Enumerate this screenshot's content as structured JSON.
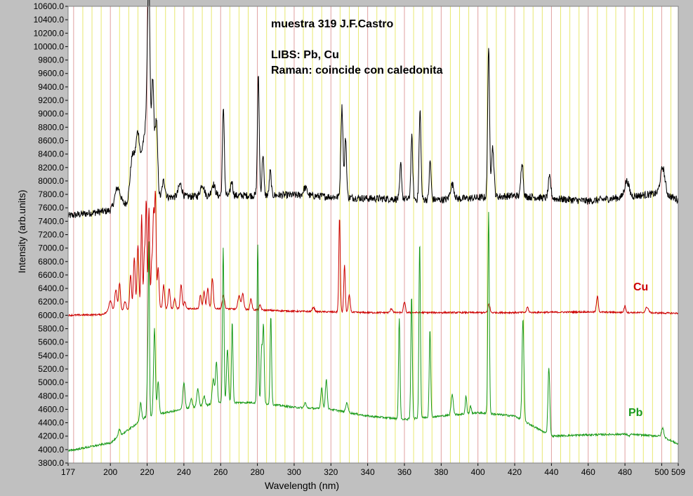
{
  "chart_data": {
    "type": "line",
    "annotations": [
      "muestra 319 J.F.Castro",
      "LIBS: Pb, Cu",
      "Raman: coincide con caledonita"
    ],
    "xlabel": "Wavelength (nm)",
    "ylabel": "Intensity (arb.units)",
    "xlim": [
      177,
      509
    ],
    "ylim": [
      3800,
      10600
    ],
    "x_ticks": [
      177,
      200,
      220,
      240,
      260,
      280,
      300,
      320,
      340,
      360,
      380,
      400,
      420,
      440,
      460,
      480,
      500,
      509
    ],
    "x_tick_labels": [
      "177",
      "200",
      "220",
      "240",
      "260",
      "280",
      "300",
      "320",
      "340",
      "360",
      "380",
      "400",
      "420",
      "440",
      "460",
      "480",
      "500",
      "509"
    ],
    "y_tick_step": 200,
    "y_tick_label_decimals": 1,
    "grid": true,
    "background": "#ffffff",
    "grid_colors": {
      "minor": "#e8e870",
      "major": "#e0a0a0"
    },
    "series": [
      {
        "color": "#000000",
        "baseline": [
          [
            177,
            7480
          ],
          [
            200,
            7560
          ],
          [
            210,
            7680
          ],
          [
            230,
            7760
          ],
          [
            260,
            7780
          ],
          [
            300,
            7790
          ],
          [
            340,
            7740
          ],
          [
            380,
            7720
          ],
          [
            420,
            7780
          ],
          [
            460,
            7700
          ],
          [
            500,
            7820
          ],
          [
            509,
            7720
          ]
        ],
        "noise": 55,
        "peaks": [
          [
            204,
            7900,
            1.5
          ],
          [
            212,
            8350,
            1.2
          ],
          [
            215,
            8700,
            1.2
          ],
          [
            218,
            8500,
            1.0
          ],
          [
            220,
            9100,
            0.8
          ],
          [
            221,
            10450,
            0.6
          ],
          [
            223,
            9500,
            0.7
          ],
          [
            225,
            8900,
            0.7
          ],
          [
            229,
            8000,
            0.8
          ],
          [
            238,
            7950,
            1.0
          ],
          [
            250,
            7950,
            1.0
          ],
          [
            256,
            7950,
            1.0
          ],
          [
            261.5,
            9100,
            0.5
          ],
          [
            266,
            8000,
            0.6
          ],
          [
            280.5,
            9550,
            0.5
          ],
          [
            283,
            8400,
            0.5
          ],
          [
            287,
            8150,
            0.5
          ],
          [
            306,
            7900,
            1.0
          ],
          [
            326,
            9100,
            0.6
          ],
          [
            328,
            8650,
            0.5
          ],
          [
            358,
            8250,
            0.5
          ],
          [
            364,
            8650,
            0.5
          ],
          [
            368.5,
            9050,
            0.5
          ],
          [
            374,
            8300,
            0.5
          ],
          [
            386,
            7950,
            1.0
          ],
          [
            405.8,
            10000,
            0.5
          ],
          [
            408,
            8500,
            0.7
          ],
          [
            424,
            8300,
            0.6
          ],
          [
            439,
            8050,
            0.7
          ],
          [
            481,
            8000,
            1.2
          ],
          [
            500.5,
            8200,
            1.2
          ]
        ]
      },
      {
        "name": "Cu",
        "color": "#cc0000",
        "baseline": [
          [
            177,
            6000
          ],
          [
            195,
            6010
          ],
          [
            200,
            6060
          ],
          [
            230,
            6100
          ],
          [
            260,
            6100
          ],
          [
            300,
            6060
          ],
          [
            340,
            6040
          ],
          [
            380,
            6040
          ],
          [
            420,
            6040
          ],
          [
            460,
            6050
          ],
          [
            509,
            6030
          ]
        ],
        "noise": 12,
        "peaks": [
          [
            200,
            6220,
            0.8
          ],
          [
            203,
            6380,
            0.6
          ],
          [
            205,
            6480,
            0.5
          ],
          [
            208,
            6200,
            0.6
          ],
          [
            211,
            6600,
            0.5
          ],
          [
            213,
            6850,
            0.5
          ],
          [
            215,
            7050,
            0.5
          ],
          [
            217,
            7500,
            0.4
          ],
          [
            218.5,
            6900,
            0.4
          ],
          [
            219.5,
            7700,
            0.4
          ],
          [
            221,
            7600,
            0.4
          ],
          [
            222.5,
            6800,
            0.4
          ],
          [
            223.5,
            7500,
            0.4
          ],
          [
            224.5,
            7800,
            0.4
          ],
          [
            226,
            6700,
            0.5
          ],
          [
            229,
            6450,
            0.5
          ],
          [
            232,
            6400,
            0.5
          ],
          [
            235,
            6250,
            0.5
          ],
          [
            238.5,
            6450,
            0.5
          ],
          [
            240.5,
            6200,
            0.5
          ],
          [
            249,
            6300,
            0.5
          ],
          [
            251,
            6350,
            0.5
          ],
          [
            253,
            6400,
            0.5
          ],
          [
            255.5,
            6550,
            0.5
          ],
          [
            261.5,
            6300,
            0.6
          ],
          [
            270,
            6300,
            0.6
          ],
          [
            272,
            6320,
            0.6
          ],
          [
            276.5,
            6250,
            0.5
          ],
          [
            281.5,
            6150,
            0.5
          ],
          [
            310.5,
            6120,
            0.6
          ],
          [
            324.7,
            7450,
            0.4
          ],
          [
            327.4,
            6750,
            0.4
          ],
          [
            330,
            6300,
            0.5
          ],
          [
            353,
            6100,
            0.6
          ],
          [
            360,
            6200,
            0.5
          ],
          [
            406,
            6180,
            0.5
          ],
          [
            427,
            6120,
            0.5
          ],
          [
            465,
            6280,
            0.5
          ],
          [
            480,
            6140,
            0.5
          ],
          [
            492,
            6120,
            0.8
          ]
        ]
      },
      {
        "name": "Pb",
        "color": "#1a9a1a",
        "baseline": [
          [
            177,
            3980
          ],
          [
            200,
            4100
          ],
          [
            210,
            4300
          ],
          [
            220,
            4500
          ],
          [
            240,
            4600
          ],
          [
            260,
            4700
          ],
          [
            280,
            4700
          ],
          [
            300,
            4630
          ],
          [
            320,
            4600
          ],
          [
            340,
            4500
          ],
          [
            360,
            4450
          ],
          [
            380,
            4500
          ],
          [
            400,
            4550
          ],
          [
            420,
            4500
          ],
          [
            430,
            4350
          ],
          [
            440,
            4200
          ],
          [
            460,
            4220
          ],
          [
            480,
            4230
          ],
          [
            500,
            4200
          ],
          [
            509,
            4080
          ]
        ],
        "noise": 14,
        "peaks": [
          [
            205,
            4300,
            0.6
          ],
          [
            216.5,
            4700,
            0.5
          ],
          [
            220.4,
            5400,
            0.4
          ],
          [
            221,
            6800,
            0.3
          ],
          [
            224,
            5800,
            0.5
          ],
          [
            226,
            5000,
            0.5
          ],
          [
            240,
            5000,
            0.6
          ],
          [
            244,
            4750,
            0.6
          ],
          [
            247.6,
            4900,
            0.6
          ],
          [
            251,
            4800,
            0.6
          ],
          [
            256,
            5050,
            0.6
          ],
          [
            257.7,
            5300,
            0.5
          ],
          [
            261.4,
            7000,
            0.4
          ],
          [
            263.7,
            5500,
            0.5
          ],
          [
            266.3,
            5900,
            0.4
          ],
          [
            280.2,
            7050,
            0.4
          ],
          [
            282.3,
            5500,
            0.4
          ],
          [
            283.3,
            5850,
            0.4
          ],
          [
            287.3,
            6000,
            0.4
          ],
          [
            306,
            4700,
            0.5
          ],
          [
            315,
            4930,
            0.5
          ],
          [
            317.5,
            5050,
            0.5
          ],
          [
            328.7,
            4700,
            0.6
          ],
          [
            357.2,
            5950,
            0.4
          ],
          [
            363.9,
            6300,
            0.4
          ],
          [
            368.3,
            7100,
            0.4
          ],
          [
            373.9,
            5800,
            0.4
          ],
          [
            386,
            4820,
            0.6
          ],
          [
            393.5,
            4800,
            0.4
          ],
          [
            396,
            4650,
            0.4
          ],
          [
            405.8,
            7550,
            0.4
          ],
          [
            424.5,
            5950,
            0.5
          ],
          [
            438.6,
            5220,
            0.5
          ],
          [
            482,
            4200,
            0.5
          ],
          [
            500.5,
            4320,
            0.6
          ]
        ]
      }
    ]
  }
}
